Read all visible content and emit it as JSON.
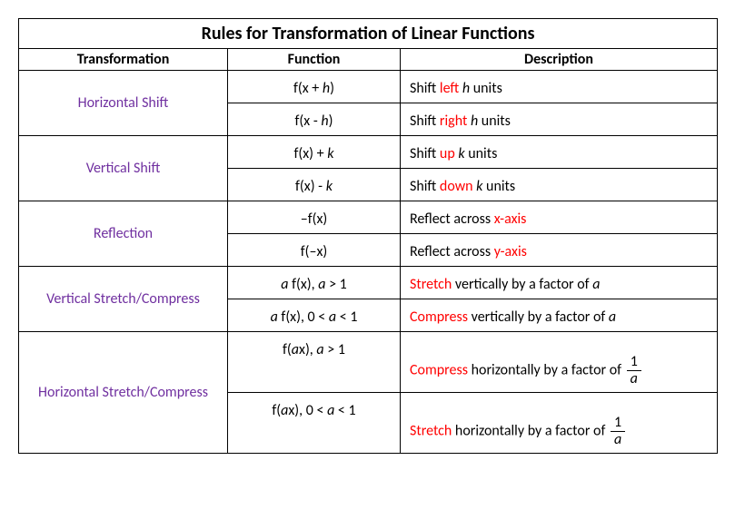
{
  "title": "Rules for Transformation of Linear Functions",
  "headers": {
    "transformation": "Transformation",
    "function": "Function",
    "description": "Description"
  },
  "rows": [
    {
      "trans": "Horizontal Shift",
      "func1_pre": "f(x + ",
      "func1_var": "h",
      "func1_post": ")",
      "desc1_pre": "Shift ",
      "desc1_red": "left",
      "desc1_mid": " ",
      "desc1_var": "h",
      "desc1_post": " units",
      "func2_pre": "f(x  - ",
      "func2_var": "h",
      "func2_post": ")",
      "desc2_pre": "Shift ",
      "desc2_red": "right",
      "desc2_mid": " ",
      "desc2_var": "h",
      "desc2_post": " units"
    },
    {
      "trans": "Vertical Shift",
      "func1_pre": "f(x) + ",
      "func1_var": "k",
      "func1_post": "",
      "desc1_pre": "Shift ",
      "desc1_red": "up",
      "desc1_mid": " ",
      "desc1_var": "k",
      "desc1_post": " units",
      "func2_pre": "f(x) - ",
      "func2_var": "k",
      "func2_post": "",
      "desc2_pre": "Shift ",
      "desc2_red": "down",
      "desc2_mid": " ",
      "desc2_var": "k",
      "desc2_post": " units"
    },
    {
      "trans": "Reflection",
      "func1_pre": "",
      "func1_var": "",
      "func1_post": "–f(x)",
      "desc1_pre": "Reflect across ",
      "desc1_red": "x-axis",
      "desc1_mid": "",
      "desc1_var": "",
      "desc1_post": "",
      "func2_pre": "",
      "func2_var": "",
      "func2_post": "f(–x)",
      "desc2_pre": "Reflect across ",
      "desc2_red": "y-axis",
      "desc2_mid": "",
      "desc2_var": "",
      "desc2_post": ""
    },
    {
      "trans": "Vertical Stretch/Compress",
      "func1_var": "a",
      "func1_mid": " f(x), ",
      "func1_var2": "a",
      "func1_post": " > 1",
      "desc1_red": "Stretch",
      "desc1_mid": " vertically by a factor of ",
      "desc1_var": "a",
      "func2_var": "a",
      "func2_mid": " f(x), 0 < ",
      "func2_var2": "a",
      "func2_post": " < 1",
      "desc2_red": "Compress",
      "desc2_mid": " vertically by a factor of ",
      "desc2_var": "a"
    },
    {
      "trans": "Horizontal Stretch/Compress",
      "func1_pre": "f(",
      "func1_var": "a",
      "func1_mid": "x), ",
      "func1_var2": "a",
      "func1_post": " > 1",
      "desc1_red": "Compress",
      "desc1_mid": " horizontally by a factor of ",
      "frac_num": "1",
      "frac_den": "a",
      "func2_pre": "f(",
      "func2_var": "a",
      "func2_mid": "x), 0 < ",
      "func2_var2": "a",
      "func2_post": " < 1",
      "desc2_red": "Stretch",
      "desc2_mid": " horizontally by a factor of "
    }
  ],
  "colors": {
    "purple": "#7030a0",
    "red": "#ff0000",
    "black": "#000000",
    "background": "#ffffff",
    "border": "#000000"
  },
  "font": {
    "family": "Calibri",
    "title_size": 20,
    "header_size": 16,
    "body_size": 16
  }
}
